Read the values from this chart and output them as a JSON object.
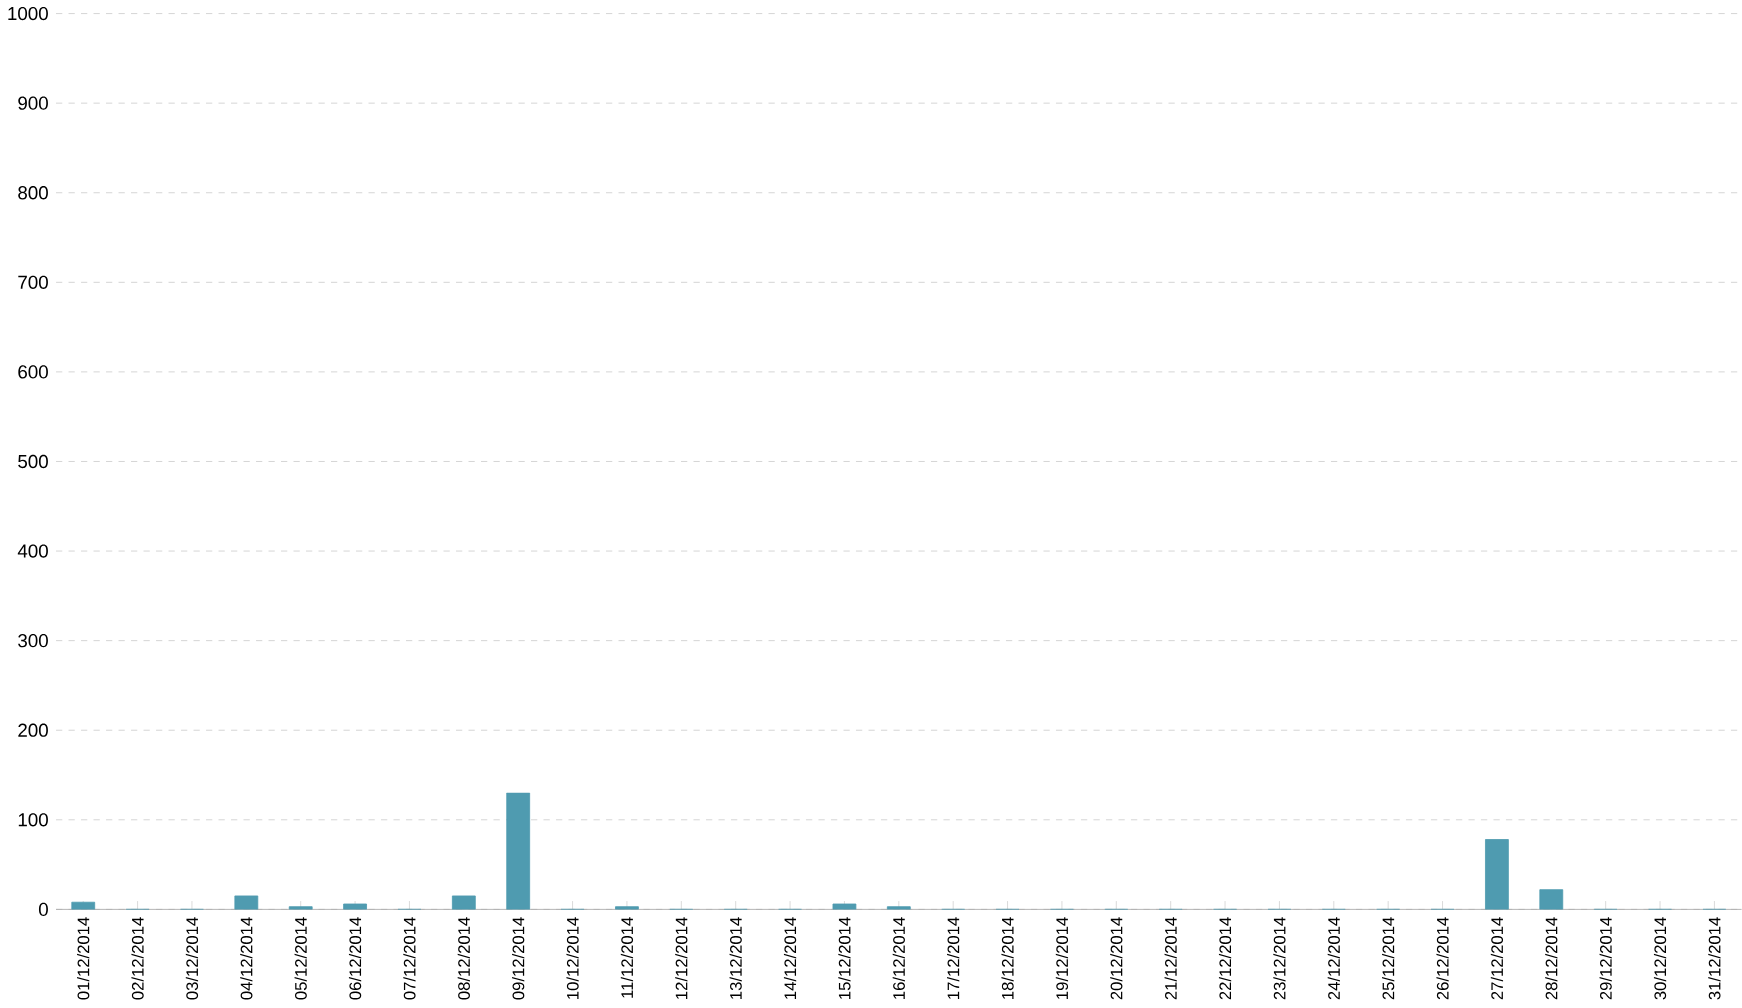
{
  "chart_data": {
    "type": "bar",
    "categories": [
      "01/12/2014",
      "02/12/2014",
      "03/12/2014",
      "04/12/2014",
      "05/12/2014",
      "06/12/2014",
      "07/12/2014",
      "08/12/2014",
      "09/12/2014",
      "10/12/2014",
      "11/12/2014",
      "12/12/2014",
      "13/12/2014",
      "14/12/2014",
      "15/12/2014",
      "16/12/2014",
      "17/12/2014",
      "18/12/2014",
      "19/12/2014",
      "20/12/2014",
      "21/12/2014",
      "22/12/2014",
      "23/12/2014",
      "24/12/2014",
      "25/12/2014",
      "26/12/2014",
      "27/12/2014",
      "28/12/2014",
      "29/12/2014",
      "30/12/2014",
      "31/12/2014"
    ],
    "values": [
      8,
      0,
      0,
      15,
      3,
      6,
      0,
      15,
      130,
      0,
      3,
      0,
      0,
      0,
      6,
      3,
      0,
      0,
      0,
      0,
      0,
      0,
      0,
      0,
      0,
      0,
      78,
      22,
      0,
      0,
      0
    ],
    "color": "#4f9bb0",
    "ylim": [
      0,
      1000
    ],
    "yticks": [
      0,
      100,
      200,
      300,
      400,
      500,
      600,
      700,
      800,
      900,
      1000
    ],
    "grid": "y"
  }
}
